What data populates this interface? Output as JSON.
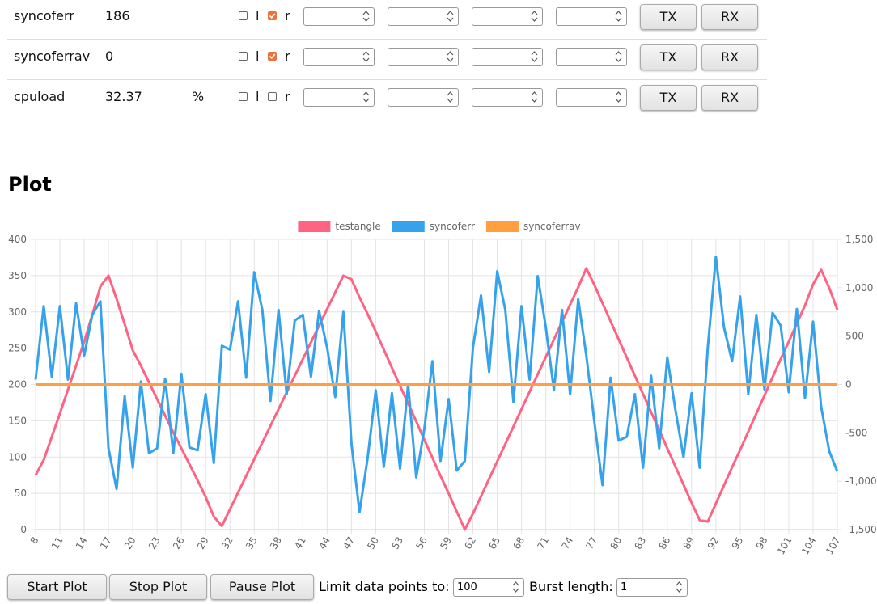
{
  "rows": [
    {
      "name": "syncoferr",
      "value": "186",
      "checks": [
        false,
        true
      ]
    },
    {
      "name": "syncoferrav",
      "value": "0",
      "checks": [
        false,
        true
      ]
    },
    {
      "name": "cpuload",
      "value": "32.37",
      "unit": "%",
      "checks": [
        false,
        false
      ]
    }
  ],
  "checkbox_labels": [
    "l",
    "r"
  ],
  "row_buttons": [
    "TX",
    "RX"
  ],
  "plot_title": "Plot",
  "controls": {
    "buttons": [
      "Start Plot",
      "Stop Plot",
      "Pause Plot"
    ],
    "limit_label": "Limit data points to:",
    "limit_value": "100",
    "burst_label": "Burst length:",
    "burst_value": "1"
  },
  "chart_data": {
    "type": "line",
    "legend": "top",
    "grid": true,
    "categories": [
      8,
      null,
      null,
      11,
      null,
      null,
      14,
      null,
      null,
      17,
      null,
      null,
      20,
      null,
      null,
      23,
      null,
      null,
      26,
      null,
      null,
      29,
      null,
      null,
      32,
      null,
      null,
      35,
      null,
      null,
      38,
      null,
      null,
      41,
      null,
      null,
      44,
      null,
      null,
      47,
      null,
      null,
      50,
      null,
      null,
      53,
      null,
      null,
      56,
      null,
      null,
      59,
      null,
      null,
      62,
      null,
      null,
      65,
      null,
      null,
      68,
      null,
      null,
      71,
      null,
      null,
      74,
      null,
      null,
      77,
      null,
      null,
      80,
      null,
      null,
      83,
      null,
      null,
      86,
      null,
      null,
      89,
      null,
      null,
      92,
      null,
      null,
      95,
      null,
      null,
      98,
      null,
      null,
      101,
      null,
      null,
      104,
      null,
      null,
      107
    ],
    "ylim": [
      0,
      400
    ],
    "yticks": [
      0,
      50,
      100,
      150,
      200,
      250,
      300,
      350,
      400
    ],
    "y2lim": [
      -1500,
      1500
    ],
    "y2ticks": [
      {
        "value": -1500,
        "label": "-1,500"
      },
      {
        "value": -1000,
        "label": "-1,000"
      },
      -500,
      0,
      500,
      {
        "value": 1000,
        "label": "1,000"
      },
      {
        "value": 1500,
        "label": "1,500"
      }
    ],
    "series": [
      {
        "name": "testangle",
        "color": "#ff6384",
        "axis": "y",
        "values": [
          75,
          96,
          128,
          160,
          193,
          226,
          259,
          296,
          335,
          350,
          318,
          283,
          247,
          226,
          203,
          180,
          157,
          134,
          112,
          90,
          68,
          45,
          18,
          5,
          28,
          51,
          74,
          97,
          120,
          143,
          166,
          189,
          212,
          235,
          258,
          281,
          304,
          327,
          350,
          345,
          320,
          297,
          273,
          248,
          223,
          198,
          174,
          149,
          124,
          99,
          74,
          50,
          25,
          0,
          22,
          46,
          70,
          94,
          118,
          142,
          166,
          190,
          214,
          238,
          262,
          286,
          310,
          334,
          360,
          337,
          312,
          287,
          262,
          237,
          212,
          187,
          162,
          137,
          112,
          87,
          62,
          37,
          13,
          11,
          36,
          61,
          86,
          110,
          135,
          160,
          185,
          210,
          235,
          259,
          284,
          309,
          338,
          358,
          333,
          303
        ]
      },
      {
        "name": "syncoferr",
        "color": "#36a2eb",
        "axis": "y2",
        "values": [
          50,
          810,
          80,
          810,
          50,
          840,
          300,
          720,
          860,
          -660,
          -1080,
          -120,
          -860,
          30,
          -710,
          -660,
          60,
          -710,
          110,
          -650,
          -680,
          -100,
          -810,
          400,
          360,
          860,
          70,
          1160,
          770,
          -170,
          770,
          -100,
          660,
          720,
          80,
          760,
          380,
          -130,
          750,
          -610,
          -1320,
          -760,
          -60,
          -850,
          -90,
          -870,
          0,
          -960,
          -460,
          240,
          -790,
          -150,
          -890,
          -790,
          380,
          920,
          130,
          1170,
          770,
          -180,
          810,
          50,
          1120,
          590,
          -60,
          770,
          -100,
          880,
          300,
          -390,
          -1040,
          70,
          -580,
          -540,
          -100,
          -860,
          90,
          -660,
          280,
          -260,
          -750,
          -90,
          -860,
          380,
          1320,
          590,
          240,
          910,
          -100,
          720,
          -50,
          740,
          610,
          -80,
          780,
          -140,
          650,
          -230,
          -690,
          -900
        ]
      },
      {
        "name": "syncoferrav",
        "color": "#ff9f40",
        "axis": "y2",
        "values": [
          0,
          0,
          0,
          0,
          0,
          0,
          0,
          0,
          0,
          0,
          0,
          0,
          0,
          0,
          0,
          0,
          0,
          0,
          0,
          0,
          0,
          0,
          0,
          0,
          0,
          0,
          0,
          0,
          0,
          0,
          0,
          0,
          0,
          0,
          0,
          0,
          0,
          0,
          0,
          0,
          0,
          0,
          0,
          0,
          0,
          0,
          0,
          0,
          0,
          0,
          0,
          0,
          0,
          0,
          0,
          0,
          0,
          0,
          0,
          0,
          0,
          0,
          0,
          0,
          0,
          0,
          0,
          0,
          0,
          0,
          0,
          0,
          0,
          0,
          0,
          0,
          0,
          0,
          0,
          0,
          0,
          0,
          0,
          0,
          0,
          0,
          0,
          0,
          0,
          0,
          0,
          0,
          0,
          0,
          0,
          0,
          0,
          0,
          0,
          0
        ]
      }
    ]
  }
}
